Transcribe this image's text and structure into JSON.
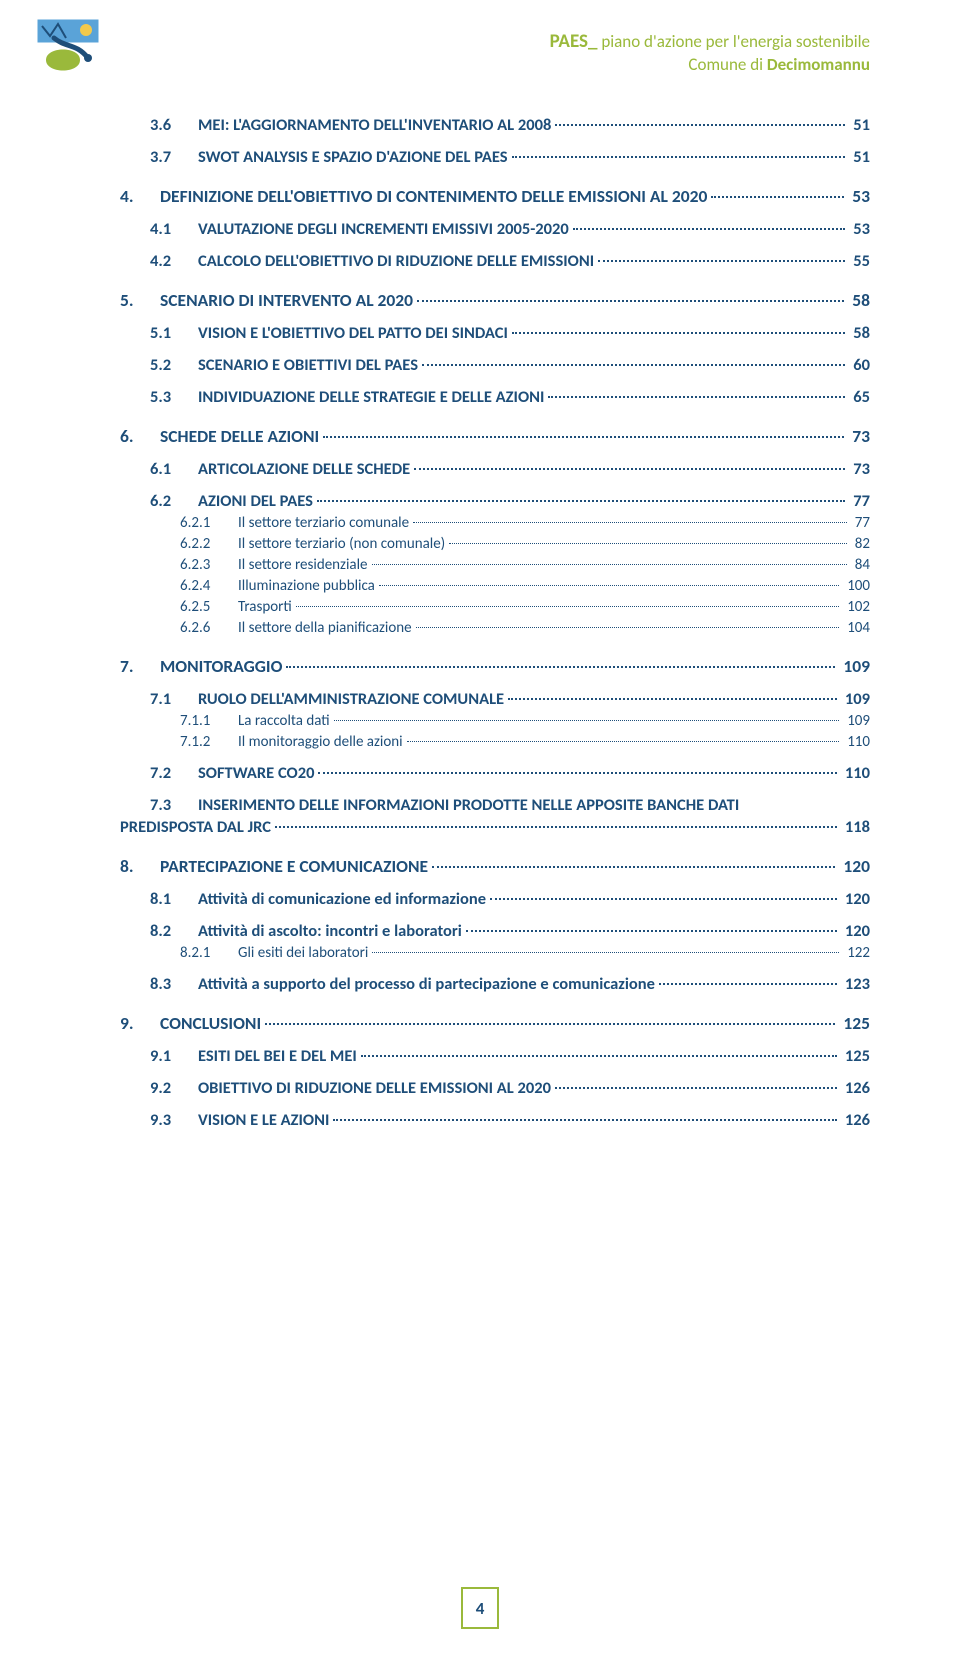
{
  "header": {
    "paes": "PAES_",
    "line1_suffix": " piano d'azione per l'energia sostenibile",
    "line2_prefix": "Comune di ",
    "line2_bold": "Decimomannu"
  },
  "colors": {
    "accent_green": "#9ab93b",
    "toc_blue": "#1e4e79",
    "background": "#ffffff"
  },
  "toc": [
    {
      "level": 2,
      "num": "3.6",
      "title": "MEI: L'AGGIORNAMENTO DELL'INVENTARIO AL 2008",
      "page": "51"
    },
    {
      "level": 2,
      "num": "3.7",
      "title": "SWOT ANALYSIS E SPAZIO D'AZIONE DEL PAES",
      "page": "51"
    },
    {
      "level": 1,
      "num": "4.",
      "title": "DEFINIZIONE DELL'OBIETTIVO DI CONTENIMENTO DELLE EMISSIONI AL 2020",
      "page": "53"
    },
    {
      "level": 2,
      "num": "4.1",
      "title": "VALUTAZIONE DEGLI INCREMENTI EMISSIVI 2005-2020",
      "page": "53"
    },
    {
      "level": 2,
      "num": "4.2",
      "title": "CALCOLO DELL'OBIETTIVO DI RIDUZIONE DELLE EMISSIONI",
      "page": "55"
    },
    {
      "level": 1,
      "num": "5.",
      "title": "SCENARIO DI INTERVENTO AL 2020",
      "page": "58"
    },
    {
      "level": 2,
      "num": "5.1",
      "title": "VISION E L'OBIETTIVO DEL PATTO DEI SINDACI",
      "page": "58"
    },
    {
      "level": 2,
      "num": "5.2",
      "title": "SCENARIO E OBIETTIVI DEL PAES",
      "page": "60"
    },
    {
      "level": 2,
      "num": "5.3",
      "title": "INDIVIDUAZIONE DELLE STRATEGIE E DELLE AZIONI",
      "page": "65"
    },
    {
      "level": 1,
      "num": "6.",
      "title": "SCHEDE DELLE AZIONI",
      "page": "73"
    },
    {
      "level": 2,
      "num": "6.1",
      "title": "ARTICOLAZIONE DELLE SCHEDE",
      "page": "73"
    },
    {
      "level": 2,
      "num": "6.2",
      "title": "AZIONI DEL PAES",
      "page": "77"
    },
    {
      "level": 3,
      "num": "6.2.1",
      "title": "Il settore terziario comunale",
      "page": "77"
    },
    {
      "level": 3,
      "num": "6.2.2",
      "title": "Il settore terziario (non comunale)",
      "page": "82"
    },
    {
      "level": 3,
      "num": "6.2.3",
      "title": "Il settore residenziale",
      "page": "84"
    },
    {
      "level": 3,
      "num": "6.2.4",
      "title": "Illuminazione pubblica",
      "page": "100"
    },
    {
      "level": 3,
      "num": "6.2.5",
      "title": "Trasporti",
      "page": "102"
    },
    {
      "level": 3,
      "num": "6.2.6",
      "title": "Il settore della pianificazione",
      "page": "104"
    },
    {
      "level": 1,
      "num": "7.",
      "title": "MONITORAGGIO",
      "page": "109"
    },
    {
      "level": 2,
      "num": "7.1",
      "title": "RUOLO DELL'AMMINISTRAZIONE COMUNALE",
      "page": "109"
    },
    {
      "level": 3,
      "num": "7.1.1",
      "title": "La raccolta dati",
      "page": "109"
    },
    {
      "level": 3,
      "num": "7.1.2",
      "title": "Il monitoraggio delle azioni",
      "page": "110"
    },
    {
      "level": 2,
      "num": "7.2",
      "title": "SOFTWARE CO20",
      "page": "110"
    },
    {
      "level": 2,
      "num": "7.3",
      "title": "INSERIMENTO DELLE INFORMAZIONI PRODOTTE NELLE APPOSITE BANCHE DATI PREDISPOSTA DAL JRC",
      "page": "118",
      "multiline": true,
      "line1": "INSERIMENTO DELLE INFORMAZIONI PRODOTTE NELLE APPOSITE BANCHE DATI",
      "line2": "PREDISPOSTA DAL JRC"
    },
    {
      "level": 1,
      "num": "8.",
      "title": "PARTECIPAZIONE E COMUNICAZIONE",
      "page": "120"
    },
    {
      "level": 2,
      "num": "8.1",
      "title": "Attività di comunicazione ed informazione",
      "page": "120"
    },
    {
      "level": 2,
      "num": "8.2",
      "title": "Attività di ascolto: incontri e laboratori",
      "page": "120"
    },
    {
      "level": 3,
      "num": "8.2.1",
      "title": "Gli esiti dei laboratori",
      "page": "122"
    },
    {
      "level": 2,
      "num": "8.3",
      "title": "Attività a supporto del processo di partecipazione e comunicazione",
      "page": "123"
    },
    {
      "level": 1,
      "num": "9.",
      "title": "CONCLUSIONI",
      "page": "125"
    },
    {
      "level": 2,
      "num": "9.1",
      "title": "ESITI DEL BEI E DEL MEI",
      "page": "125"
    },
    {
      "level": 2,
      "num": "9.2",
      "title": "OBIETTIVO DI RIDUZIONE DELLE EMISSIONI AL 2020",
      "page": "126"
    },
    {
      "level": 2,
      "num": "9.3",
      "title": "VISION E LE AZIONI",
      "page": "126"
    }
  ],
  "page_number": "4"
}
